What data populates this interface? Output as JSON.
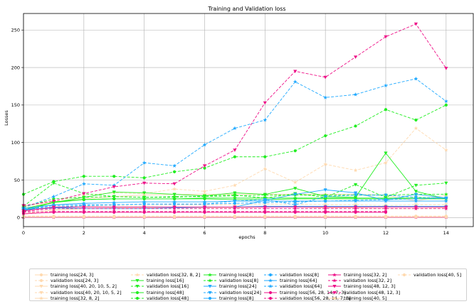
{
  "chart_data": {
    "type": "line",
    "title": "Training and Validation loss",
    "xlabel": "epochs",
    "ylabel": "Losses",
    "xlim": [
      0,
      14.9
    ],
    "ylim": [
      -12,
      272
    ],
    "xticks": [
      0,
      2,
      4,
      6,
      8,
      10,
      12,
      14
    ],
    "yticks": [
      0,
      50,
      100,
      150,
      200,
      250
    ],
    "grid": true,
    "legend_position": "bottom",
    "series": [
      {
        "name": "training loss[24, 3]",
        "color": "#ffdab0",
        "dash": "solid",
        "marker": "circle",
        "x": [
          0,
          1,
          2,
          3,
          4,
          5,
          6,
          7,
          8,
          9,
          10,
          11,
          12,
          13,
          14
        ],
        "y": [
          1,
          0.5,
          0.5,
          0.5,
          0.5,
          0.5,
          0.5,
          0.5,
          0.5,
          0.5,
          0.5,
          0.5,
          0.5,
          0.5,
          0.5
        ]
      },
      {
        "name": "validation loss[24, 3]",
        "color": "#ffdab0",
        "dash": "dashed",
        "marker": "circle",
        "x": [
          0,
          1,
          2,
          3,
          4,
          5,
          6,
          7,
          8,
          9,
          10,
          11,
          12,
          13,
          14
        ],
        "y": [
          2,
          1,
          1,
          1,
          1,
          1,
          1,
          1,
          1,
          1,
          1,
          1,
          1,
          1,
          1
        ]
      },
      {
        "name": "training loss[40, 20, 10, 5, 2]",
        "color": "#ffdab0",
        "dash": "solid",
        "marker": "triangle-down",
        "x": [
          0,
          1,
          2,
          3,
          4,
          5,
          6,
          7,
          8,
          9,
          10,
          11,
          12,
          13,
          14
        ],
        "y": [
          5,
          10,
          12,
          13,
          13,
          13,
          13,
          13,
          14,
          14,
          13,
          13,
          12,
          12,
          13
        ]
      },
      {
        "name": "validation loss[40, 20, 10, 5, 2]",
        "color": "#ffdab0",
        "dash": "dashed",
        "marker": "triangle-down",
        "x": [
          0,
          1,
          2,
          3,
          4,
          5,
          6,
          7,
          8,
          9,
          10,
          11,
          12,
          13,
          14
        ],
        "y": [
          9,
          14,
          15,
          16,
          16,
          17,
          17,
          17,
          18,
          18,
          17,
          17,
          16,
          17,
          17
        ]
      },
      {
        "name": "training loss[32, 8, 2]",
        "color": "#ffdab0",
        "dash": "solid",
        "marker": "star",
        "x": [
          0,
          1,
          2,
          3,
          4,
          5,
          6,
          7,
          8,
          9,
          10,
          11,
          12,
          13,
          14
        ],
        "y": [
          15,
          21,
          25,
          28,
          30,
          31,
          31,
          31,
          31,
          31,
          31,
          31,
          30,
          22,
          30
        ]
      },
      {
        "name": "validation loss[32, 8, 2]",
        "color": "#ffdab0",
        "dash": "dashed",
        "marker": "star",
        "x": [
          0,
          1,
          2,
          3,
          4,
          5,
          6,
          7,
          8,
          9,
          10,
          11,
          12,
          13,
          14
        ],
        "y": [
          12,
          21,
          30,
          33,
          32,
          38,
          35,
          43,
          65,
          47,
          71,
          63,
          73,
          119,
          90
        ]
      },
      {
        "name": "training loss[16]",
        "color": "#22ee22",
        "dash": "solid",
        "marker": "triangle-down",
        "x": [
          0,
          1,
          2,
          3,
          4,
          5,
          6,
          7,
          8,
          9,
          10,
          11,
          12,
          13,
          14
        ],
        "y": [
          12,
          20,
          27,
          34,
          33,
          31,
          29,
          33,
          31,
          39,
          28,
          27,
          86,
          35,
          25
        ]
      },
      {
        "name": "validation loss[16]",
        "color": "#22ee22",
        "dash": "dashed",
        "marker": "triangle-down",
        "x": [
          0,
          1,
          2,
          3,
          4,
          5,
          6,
          7,
          8,
          9,
          10,
          11,
          12,
          13,
          14
        ],
        "y": [
          15,
          46,
          32,
          28,
          27,
          27,
          29,
          30,
          26,
          32,
          27,
          44,
          27,
          43,
          46
        ]
      },
      {
        "name": "training loss[48]",
        "color": "#22ee22",
        "dash": "solid",
        "marker": "circle",
        "x": [
          0,
          1,
          2,
          3,
          4,
          5,
          6,
          7,
          8,
          9,
          10,
          11,
          12,
          13,
          14
        ],
        "y": [
          8,
          21,
          24,
          25,
          25,
          25,
          25,
          24,
          24,
          25,
          25,
          25,
          25,
          25,
          25
        ]
      },
      {
        "name": "validation loss[48]",
        "color": "#22ee22",
        "dash": "dashed",
        "marker": "circle",
        "x": [
          0,
          1,
          2,
          3,
          4,
          5,
          6,
          7,
          8,
          9,
          10,
          11,
          12,
          13,
          14
        ],
        "y": [
          31,
          48,
          55,
          55,
          53,
          61,
          66,
          81,
          81,
          89,
          109,
          122,
          144,
          130,
          150
        ]
      },
      {
        "name": "training loss[8]",
        "color": "#22ee22",
        "dash": "solid",
        "marker": "star",
        "x": [
          0,
          1,
          2,
          3,
          4,
          5,
          6,
          7,
          8,
          9,
          10,
          11,
          12,
          13,
          14
        ],
        "y": [
          10,
          20,
          24,
          25,
          25,
          25,
          26,
          26,
          26,
          26,
          26,
          26,
          26,
          26,
          26
        ]
      },
      {
        "name": "validation loss[8]",
        "color": "#22ee22",
        "dash": "dashed",
        "marker": "star",
        "x": [
          0,
          1,
          2,
          3,
          4,
          5,
          6,
          7,
          8,
          9,
          10,
          11,
          12,
          13,
          14
        ],
        "y": [
          14,
          25,
          27,
          28,
          27,
          28,
          28,
          29,
          30,
          30,
          30,
          30,
          30,
          31,
          31
        ]
      },
      {
        "name": "training loss[24]",
        "color": "#22aaff",
        "dash": "solid",
        "marker": "triangle-down",
        "x": [
          0,
          1,
          2,
          3,
          4,
          5,
          6,
          7,
          8,
          9,
          10,
          11,
          12,
          13,
          14
        ],
        "y": [
          10,
          13,
          12,
          12,
          12,
          13,
          14,
          14,
          23,
          31,
          37,
          33,
          23,
          31,
          26
        ]
      },
      {
        "name": "validation loss[24]",
        "color": "#22aaff",
        "dash": "dashed",
        "marker": "triangle-down",
        "x": [
          0,
          1,
          2,
          3,
          4,
          5,
          6,
          7,
          8,
          9,
          10,
          11,
          12,
          13,
          14
        ],
        "y": [
          12,
          14,
          16,
          17,
          18,
          18,
          18,
          22,
          24,
          17,
          28,
          30,
          30,
          27,
          26
        ]
      },
      {
        "name": "training loss[8]",
        "color": "#22aaff",
        "dash": "solid",
        "marker": "circle",
        "x": [
          0,
          1,
          2,
          3,
          4,
          5,
          6,
          7,
          8,
          9,
          10,
          11,
          12,
          13,
          14
        ],
        "y": [
          11,
          13,
          14,
          14,
          14,
          14,
          14,
          14,
          15,
          15,
          15,
          15,
          15,
          15,
          15
        ]
      },
      {
        "name": "validation loss[8]",
        "color": "#22aaff",
        "dash": "dashed",
        "marker": "circle",
        "x": [
          0,
          1,
          2,
          3,
          4,
          5,
          6,
          7,
          8,
          9,
          10,
          11,
          12,
          13,
          14
        ],
        "y": [
          12,
          16,
          17,
          17,
          18,
          18,
          18,
          19,
          20,
          21,
          22,
          23,
          24,
          25,
          26
        ]
      },
      {
        "name": "training loss[64]",
        "color": "#22aaff",
        "dash": "solid",
        "marker": "star",
        "x": [
          0,
          1,
          2,
          3,
          4,
          5,
          6,
          7,
          8,
          9,
          10,
          11,
          12,
          13,
          14
        ],
        "y": [
          12,
          17,
          19,
          20,
          21,
          21,
          21,
          22,
          22,
          22,
          22,
          22,
          22,
          22,
          22
        ]
      },
      {
        "name": "validation loss[64]",
        "color": "#22aaff",
        "dash": "dashed",
        "marker": "star",
        "x": [
          0,
          1,
          2,
          3,
          4,
          5,
          6,
          7,
          8,
          9,
          10,
          11,
          12,
          13,
          14
        ],
        "y": [
          13,
          28,
          45,
          43,
          73,
          69,
          97,
          119,
          130,
          181,
          160,
          164,
          176,
          185,
          155
        ]
      },
      {
        "name": "training loss[56, 28, 14, 7, 3]",
        "color": "#ee1188",
        "dash": "solid",
        "marker": "circle",
        "x": [
          0,
          1,
          2,
          3,
          4,
          5,
          6,
          7,
          8,
          9,
          10,
          11,
          12
        ],
        "y": [
          5,
          7,
          7,
          7,
          7,
          7,
          7,
          7,
          7,
          7,
          7,
          7,
          7
        ]
      },
      {
        "name": "validation loss[56, 28, 14, 7, 3]",
        "color": "#ee1188",
        "dash": "dashed",
        "marker": "circle",
        "x": [
          0,
          1,
          2,
          3,
          4,
          5,
          6,
          7,
          8,
          9,
          10,
          11,
          12
        ],
        "y": [
          7,
          8,
          8,
          8,
          8,
          8,
          8,
          8,
          8,
          8,
          8,
          8,
          8
        ]
      },
      {
        "name": "training loss[32, 2]",
        "color": "#ee1188",
        "dash": "solid",
        "marker": "star",
        "x": [
          0,
          1,
          2,
          3,
          4,
          5,
          6,
          7,
          8,
          9,
          10,
          11,
          12,
          13,
          14
        ],
        "y": [
          0.5,
          0.5,
          0.5,
          0.5,
          0.5,
          0.5,
          0.5,
          0.5,
          0.5,
          0.5,
          0.5,
          0.5,
          0.5,
          0.5,
          0.5
        ]
      },
      {
        "name": "validation loss[32, 2]",
        "color": "#ee1188",
        "dash": "dashed",
        "marker": "star",
        "x": [
          0,
          1,
          2,
          3,
          4,
          5,
          6,
          7,
          8,
          9,
          10,
          11,
          12,
          13,
          14
        ],
        "y": [
          8,
          12,
          12,
          12,
          12,
          12,
          12,
          12,
          12,
          12,
          12,
          12,
          12,
          12,
          12
        ]
      },
      {
        "name": "training loss[48, 12, 3]",
        "color": "#ee1188",
        "dash": "solid",
        "marker": "triangle-down",
        "x": [
          0,
          1,
          2,
          3,
          4,
          5,
          6,
          7,
          8,
          9,
          10,
          11,
          12,
          13,
          14
        ],
        "y": [
          9,
          14,
          14,
          14,
          14,
          14,
          14,
          14,
          14,
          14,
          14,
          14,
          14,
          14,
          14
        ]
      },
      {
        "name": "validation loss[48, 12, 3]",
        "color": "#ee1188",
        "dash": "dashed",
        "marker": "triangle-down",
        "x": [
          0,
          1,
          2,
          3,
          4,
          5,
          6,
          7,
          8,
          9,
          10,
          11,
          12,
          13,
          14
        ],
        "y": [
          16,
          22,
          32,
          41,
          46,
          45,
          69,
          90,
          153,
          195,
          187,
          214,
          241,
          258,
          199
        ]
      },
      {
        "name": "training loss[40, 5]",
        "color": "#ffdab0",
        "dash": "solid",
        "marker": "circle",
        "x": [
          0,
          1,
          2,
          3,
          4,
          5,
          6,
          7,
          8,
          9,
          10,
          11,
          12,
          13,
          14
        ],
        "y": [
          1,
          1,
          1,
          1,
          1,
          1,
          1,
          1,
          1,
          1,
          1,
          1,
          1,
          1,
          1
        ]
      },
      {
        "name": "validation loss[40, 5]",
        "color": "#ffdab0",
        "dash": "dashed",
        "marker": "circle",
        "x": [
          0,
          1,
          2,
          3,
          4,
          5,
          6,
          7,
          8,
          9,
          10,
          11,
          12,
          13,
          14
        ],
        "y": [
          2,
          2,
          2,
          2,
          2,
          2,
          2,
          2,
          2,
          2,
          2,
          2,
          2,
          2,
          2
        ]
      }
    ]
  }
}
